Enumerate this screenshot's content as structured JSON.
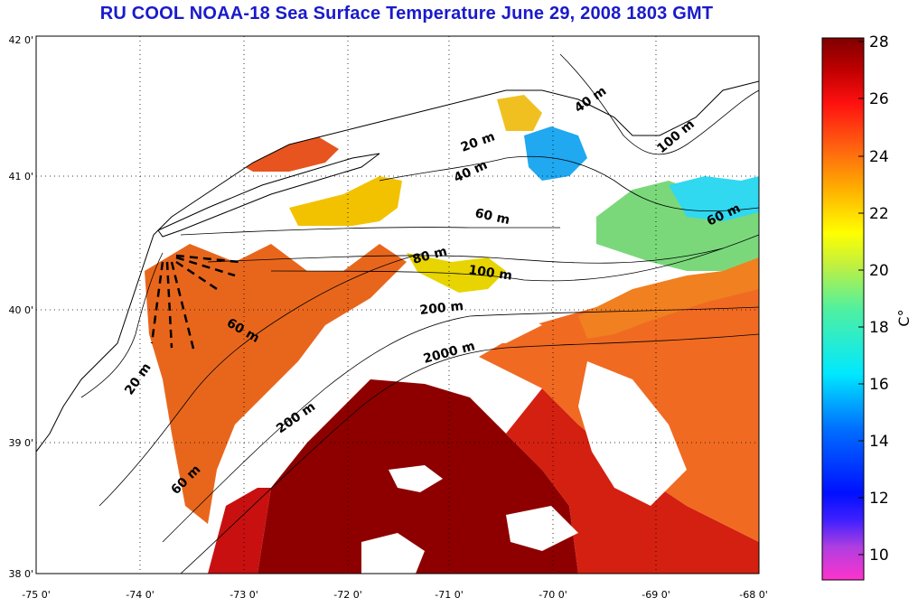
{
  "title": "RU COOL  NOAA-18 Sea Surface Temperature June 29, 2008 1803 GMT",
  "lat_labels": [
    "42 0'",
    "41 0'",
    "40 0'",
    "39 0'",
    "38 0'"
  ],
  "lon_labels": [
    "-75 0'",
    "-74 0'",
    "-73 0'",
    "-72 0'",
    "-71 0'",
    "-70 0'",
    "-69 0'",
    "-68 0'"
  ],
  "contour_labels": [
    "40 m",
    "20 m",
    "40 m",
    "100 m",
    "60 m",
    "60 m",
    "80 m",
    "100 m",
    "200 m",
    "60 m",
    "2000 m",
    "20 m",
    "200 m",
    "60 m"
  ],
  "colorbar": {
    "ticks": [
      "28",
      "26",
      "24",
      "22",
      "20",
      "18",
      "16",
      "14",
      "12",
      "10"
    ],
    "unit": "C°",
    "min": 9,
    "max": 28
  },
  "colors": {
    "title": "#1a1acc",
    "warm": "#8a0000",
    "hot": "#c80d0d",
    "orange": "#f07020",
    "yellow": "#f6e000",
    "green": "#7fe070",
    "cyan": "#20d8ff",
    "blue": "#2040ff"
  }
}
